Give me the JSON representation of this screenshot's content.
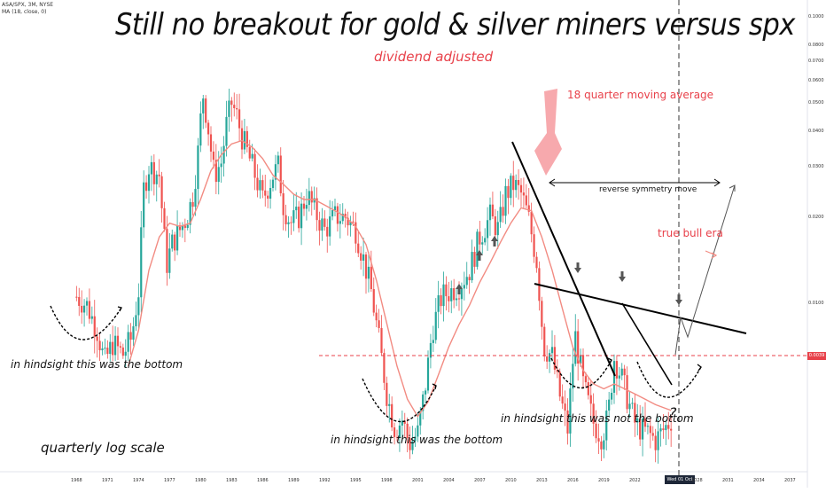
{
  "title": "Still no breakout for gold & silver miners versus spx",
  "subtitle": "dividend adjusted",
  "ticker": "ASA/SPX, 3M, NYSE",
  "indicator": "MA (18, close, 0)",
  "annotations": {
    "ma": "18 quarter moving average",
    "symmetry": "reverse symmetry move",
    "bull": "true bull era",
    "bottom1": "in hindsight this was the bottom",
    "bottom2": "in hindsight this was the bottom",
    "notbottom": "in hindsight this was not the bottom",
    "question": "?",
    "scale": "quarterly log scale"
  },
  "price_tag": "0.0039",
  "date_tag": "Wed 01 Oct '25",
  "colors": {
    "up": "#26a69a",
    "down": "#ef5350",
    "ma": "#f28b82",
    "accent": "#e8414a",
    "trend": "#000000"
  },
  "chart_data": {
    "type": "candlestick",
    "scale": "log",
    "title": "Still no breakout for gold & silver miners versus spx",
    "series": [
      {
        "name": "ASA/SPX, 3M, NYSE"
      },
      {
        "name": "MA (18, close, 0)"
      }
    ],
    "y_ticks": [
      "0.1000",
      "0.0800",
      "0.0700",
      "0.0600",
      "0.0500",
      "0.0400",
      "0.0300",
      "0.0200",
      "0.0100"
    ],
    "ylim": [
      0.0026,
      0.11
    ],
    "x_ticks": [
      "1968",
      "1971",
      "1974",
      "1977",
      "1980",
      "1983",
      "1986",
      "1989",
      "1992",
      "1995",
      "1998",
      "2001",
      "2004",
      "2007",
      "2010",
      "2013",
      "2016",
      "2019",
      "2022",
      "2028",
      "2031",
      "2034",
      "2037"
    ],
    "xlim": [
      1966,
      2038
    ],
    "close_path": [
      [
        1968.0,
        0.0105
      ],
      [
        1969.0,
        0.0098
      ],
      [
        1970.0,
        0.008
      ],
      [
        1970.7,
        0.0062
      ],
      [
        1971.5,
        0.0072
      ],
      [
        1972.5,
        0.0066
      ],
      [
        1973.3,
        0.0075
      ],
      [
        1974.0,
        0.011
      ],
      [
        1974.5,
        0.025
      ],
      [
        1975.0,
        0.03
      ],
      [
        1976.0,
        0.028
      ],
      [
        1976.7,
        0.0135
      ],
      [
        1977.2,
        0.016
      ],
      [
        1978.0,
        0.018
      ],
      [
        1978.7,
        0.02
      ],
      [
        1979.3,
        0.024
      ],
      [
        1979.8,
        0.035
      ],
      [
        1980.2,
        0.055
      ],
      [
        1980.7,
        0.042
      ],
      [
        1981.3,
        0.028
      ],
      [
        1982.0,
        0.031
      ],
      [
        1982.5,
        0.042
      ],
      [
        1983.0,
        0.05
      ],
      [
        1983.5,
        0.045
      ],
      [
        1984.0,
        0.038
      ],
      [
        1985.0,
        0.03
      ],
      [
        1986.0,
        0.023
      ],
      [
        1987.0,
        0.028
      ],
      [
        1987.5,
        0.03
      ],
      [
        1988.0,
        0.022
      ],
      [
        1988.7,
        0.019
      ],
      [
        1989.5,
        0.02
      ],
      [
        1990.3,
        0.024
      ],
      [
        1991.0,
        0.021
      ],
      [
        1992.0,
        0.018
      ],
      [
        1993.0,
        0.02
      ],
      [
        1994.0,
        0.02
      ],
      [
        1995.0,
        0.018
      ],
      [
        1995.8,
        0.014
      ],
      [
        1996.5,
        0.011
      ],
      [
        1997.3,
        0.0072
      ],
      [
        1998.0,
        0.0048
      ],
      [
        1998.8,
        0.0036
      ],
      [
        1999.5,
        0.0039
      ],
      [
        2000.2,
        0.0032
      ],
      [
        2001.0,
        0.0035
      ],
      [
        2001.7,
        0.005
      ],
      [
        2002.4,
        0.008
      ],
      [
        2003.3,
        0.0105
      ],
      [
        2004.2,
        0.011
      ],
      [
        2005.0,
        0.0115
      ],
      [
        2006.0,
        0.013
      ],
      [
        2007.0,
        0.017
      ],
      [
        2008.0,
        0.02
      ],
      [
        2008.8,
        0.018
      ],
      [
        2009.5,
        0.024
      ],
      [
        2010.3,
        0.026
      ],
      [
        2011.0,
        0.024
      ],
      [
        2011.7,
        0.02
      ],
      [
        2012.5,
        0.014
      ],
      [
        2013.2,
        0.007
      ],
      [
        2014.0,
        0.0065
      ],
      [
        2014.7,
        0.0048
      ],
      [
        2015.5,
        0.0036
      ],
      [
        2016.2,
        0.0078
      ],
      [
        2017.0,
        0.0052
      ],
      [
        2018.0,
        0.0038
      ],
      [
        2018.8,
        0.0034
      ],
      [
        2019.4,
        0.004
      ],
      [
        2020.0,
        0.0064
      ],
      [
        2020.7,
        0.0055
      ],
      [
        2021.3,
        0.0046
      ],
      [
        2022.0,
        0.0038
      ],
      [
        2022.6,
        0.0036
      ],
      [
        2023.3,
        0.0035
      ],
      [
        2024.0,
        0.0033
      ],
      [
        2024.8,
        0.0036
      ],
      [
        2025.5,
        0.0039
      ]
    ],
    "ma_path": [
      [
        1973.0,
        0.006
      ],
      [
        1974.0,
        0.008
      ],
      [
        1975.0,
        0.013
      ],
      [
        1976.0,
        0.017
      ],
      [
        1977.0,
        0.019
      ],
      [
        1978.0,
        0.0185
      ],
      [
        1979.0,
        0.019
      ],
      [
        1980.0,
        0.023
      ],
      [
        1981.0,
        0.029
      ],
      [
        1982.0,
        0.033
      ],
      [
        1983.0,
        0.036
      ],
      [
        1984.0,
        0.037
      ],
      [
        1985.0,
        0.035
      ],
      [
        1986.0,
        0.032
      ],
      [
        1987.0,
        0.028
      ],
      [
        1988.0,
        0.026
      ],
      [
        1989.0,
        0.024
      ],
      [
        1990.0,
        0.023
      ],
      [
        1991.0,
        0.023
      ],
      [
        1992.0,
        0.022
      ],
      [
        1993.0,
        0.021
      ],
      [
        1994.0,
        0.02
      ],
      [
        1995.0,
        0.0185
      ],
      [
        1996.0,
        0.016
      ],
      [
        1997.0,
        0.012
      ],
      [
        1998.0,
        0.0085
      ],
      [
        1999.0,
        0.006
      ],
      [
        2000.0,
        0.0046
      ],
      [
        2001.0,
        0.004
      ],
      [
        2002.0,
        0.0045
      ],
      [
        2003.0,
        0.0056
      ],
      [
        2004.0,
        0.007
      ],
      [
        2005.0,
        0.0084
      ],
      [
        2006.0,
        0.0098
      ],
      [
        2007.0,
        0.0118
      ],
      [
        2008.0,
        0.0138
      ],
      [
        2009.0,
        0.0163
      ],
      [
        2010.0,
        0.019
      ],
      [
        2011.0,
        0.0215
      ],
      [
        2012.0,
        0.021
      ],
      [
        2013.0,
        0.017
      ],
      [
        2014.0,
        0.013
      ],
      [
        2015.0,
        0.0095
      ],
      [
        2016.0,
        0.007
      ],
      [
        2017.0,
        0.0058
      ],
      [
        2018.0,
        0.0052
      ],
      [
        2019.0,
        0.005
      ],
      [
        2020.0,
        0.0052
      ],
      [
        2021.0,
        0.005
      ],
      [
        2022.0,
        0.0048
      ],
      [
        2023.0,
        0.0046
      ],
      [
        2024.0,
        0.0044
      ],
      [
        2025.5,
        0.0042
      ]
    ]
  }
}
